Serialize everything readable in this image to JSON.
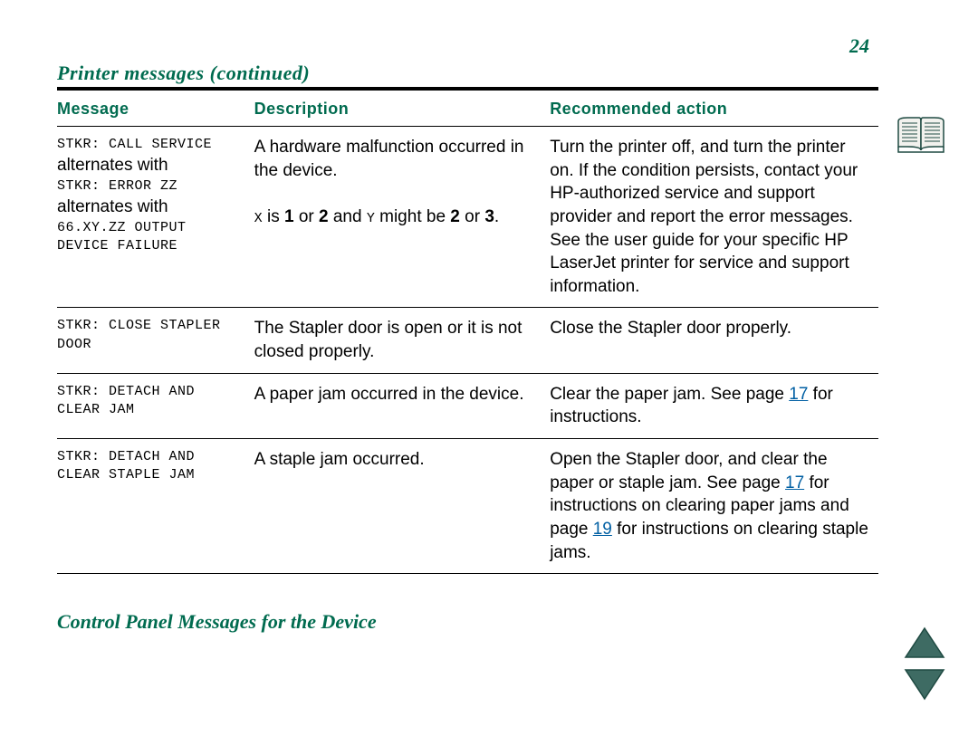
{
  "colors": {
    "accent": "#006b4f",
    "link": "#005fa3",
    "text": "#000000",
    "rule": "#000000",
    "icon_fill": "#3e6b63",
    "icon_border": "#1f4a42",
    "background": "#ffffff"
  },
  "fonts": {
    "body": "Arial, Helvetica",
    "title": "Georgia, Times New Roman (italic bold)",
    "mono": "Courier New",
    "body_size_pt": 14,
    "title_size_pt": 16,
    "mono_size_pt": 11
  },
  "page_number": "24",
  "section_title": "Printer messages (continued)",
  "footer_title": "Control Panel Messages for the Device",
  "table": {
    "headers": {
      "message": "Message",
      "description": "Description",
      "action": "Recommended action"
    },
    "rows": [
      {
        "message": {
          "segments": [
            {
              "text": "STKR: CALL SERVICE",
              "style": "mono"
            },
            {
              "text": "alternates with",
              "style": "alt"
            },
            {
              "text": "STKR: ERROR ZZ",
              "style": "mono"
            },
            {
              "text": "alternates with",
              "style": "alt"
            },
            {
              "text": "66.XY.ZZ OUTPUT DEVICE FAILURE",
              "style": "mono"
            }
          ]
        },
        "description": {
          "segments": [
            {
              "text": "A hardware malfunction occurred in the device."
            },
            {
              "text": "",
              "break": true
            },
            {
              "text": "X",
              "style": "small-mono"
            },
            {
              "text": " is "
            },
            {
              "text": "1",
              "bold": true
            },
            {
              "text": " or "
            },
            {
              "text": "2",
              "bold": true
            },
            {
              "text": " and "
            },
            {
              "text": "Y",
              "style": "small-mono"
            },
            {
              "text": " might be "
            },
            {
              "text": "2",
              "bold": true
            },
            {
              "text": " or "
            },
            {
              "text": "3",
              "bold": true
            },
            {
              "text": "."
            }
          ]
        },
        "action": {
          "segments": [
            {
              "text": "Turn the printer off, and turn the printer on. If the condition persists, contact your HP-authorized service and support provider and report the error messages. See the user guide for your specific HP LaserJet printer for service and support information."
            }
          ]
        }
      },
      {
        "message": {
          "segments": [
            {
              "text": "STKR: CLOSE STAPLER DOOR",
              "style": "mono"
            }
          ]
        },
        "description": {
          "segments": [
            {
              "text": "The Stapler door is open or it is not closed properly."
            }
          ]
        },
        "action": {
          "segments": [
            {
              "text": "Close the Stapler door properly."
            }
          ]
        }
      },
      {
        "message": {
          "segments": [
            {
              "text": "STKR: DETACH AND CLEAR JAM",
              "style": "mono"
            }
          ]
        },
        "description": {
          "segments": [
            {
              "text": "A paper jam occurred in the device."
            }
          ]
        },
        "action": {
          "segments": [
            {
              "text": "Clear the paper jam. See page "
            },
            {
              "text": "17",
              "link": true
            },
            {
              "text": " for instructions."
            }
          ]
        }
      },
      {
        "message": {
          "segments": [
            {
              "text": "STKR: DETACH AND CLEAR STAPLE JAM",
              "style": "mono"
            }
          ]
        },
        "description": {
          "segments": [
            {
              "text": "A staple jam occurred."
            }
          ]
        },
        "action": {
          "segments": [
            {
              "text": "Open the Stapler door, and clear the paper or staple jam. See page "
            },
            {
              "text": "17",
              "link": true
            },
            {
              "text": " for instructions on clearing paper jams and page "
            },
            {
              "text": "19",
              "link": true
            },
            {
              "text": " for instructions on clearing staple jams."
            }
          ]
        }
      }
    ]
  },
  "nav": {
    "book_icon": "book-icon",
    "up_arrow": "page-up-icon",
    "down_arrow": "page-down-icon"
  }
}
